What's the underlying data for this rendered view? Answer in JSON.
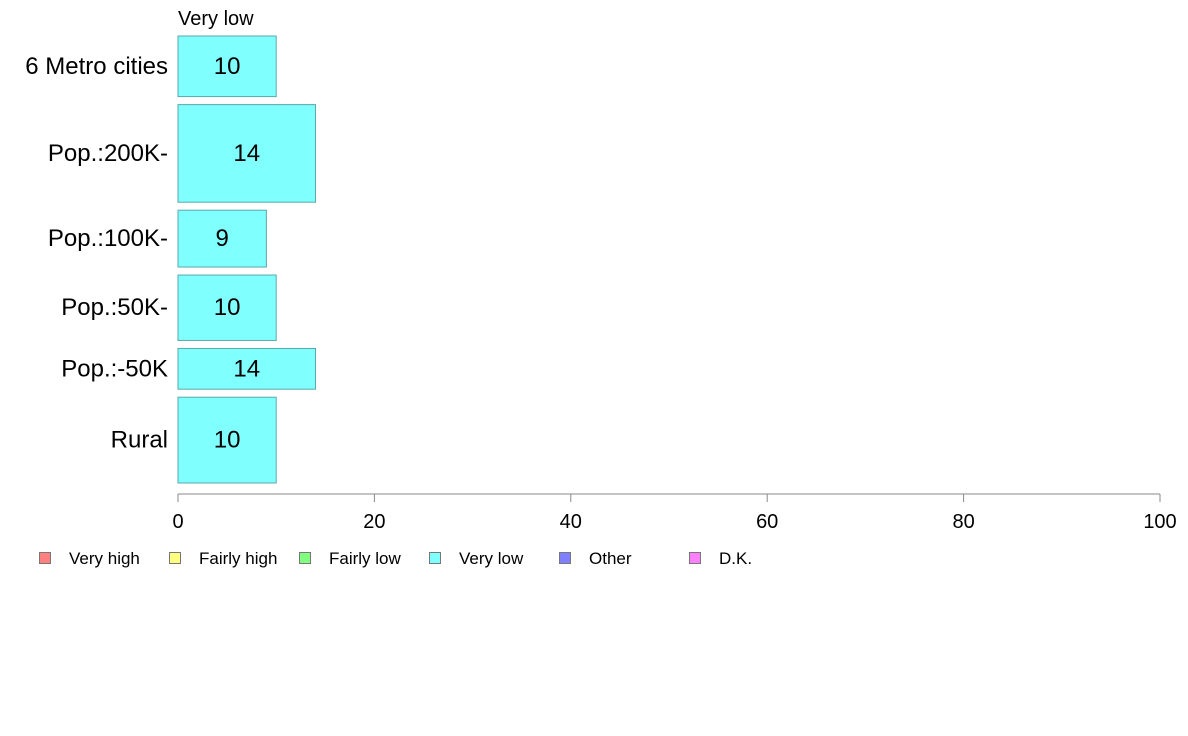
{
  "chart_data": {
    "type": "bar",
    "orientation": "horizontal",
    "title": "",
    "xlabel": "",
    "ylabel": "",
    "xlim": [
      0,
      100
    ],
    "x_ticks": [
      0,
      20,
      40,
      60,
      80,
      100
    ],
    "grid": false,
    "legend_position": "bottom",
    "categories": [
      "6 Metro cities",
      "Pop.:200K-",
      "Pop.:100K-",
      "Pop.:50K-",
      "Pop.:-50K",
      "Rural"
    ],
    "category_shares": [
      0.113,
      0.182,
      0.106,
      0.122,
      0.076,
      0.16
    ],
    "series": [
      {
        "name": "Very low",
        "values": [
          10,
          14,
          9,
          10,
          14,
          10
        ],
        "labels": [
          "10",
          "14",
          "9",
          "10",
          "14",
          "10"
        ],
        "color": "#80FFFF"
      }
    ],
    "legend": [
      {
        "label": "Very high",
        "color": "#FF8080"
      },
      {
        "label": "Fairly high",
        "color": "#FFFF80"
      },
      {
        "label": "Fairly low",
        "color": "#80FF80"
      },
      {
        "label": "Very low",
        "color": "#80FFFF"
      },
      {
        "label": "Other",
        "color": "#8080FF"
      },
      {
        "label": "D.K.",
        "color": "#FF80FF"
      }
    ]
  }
}
